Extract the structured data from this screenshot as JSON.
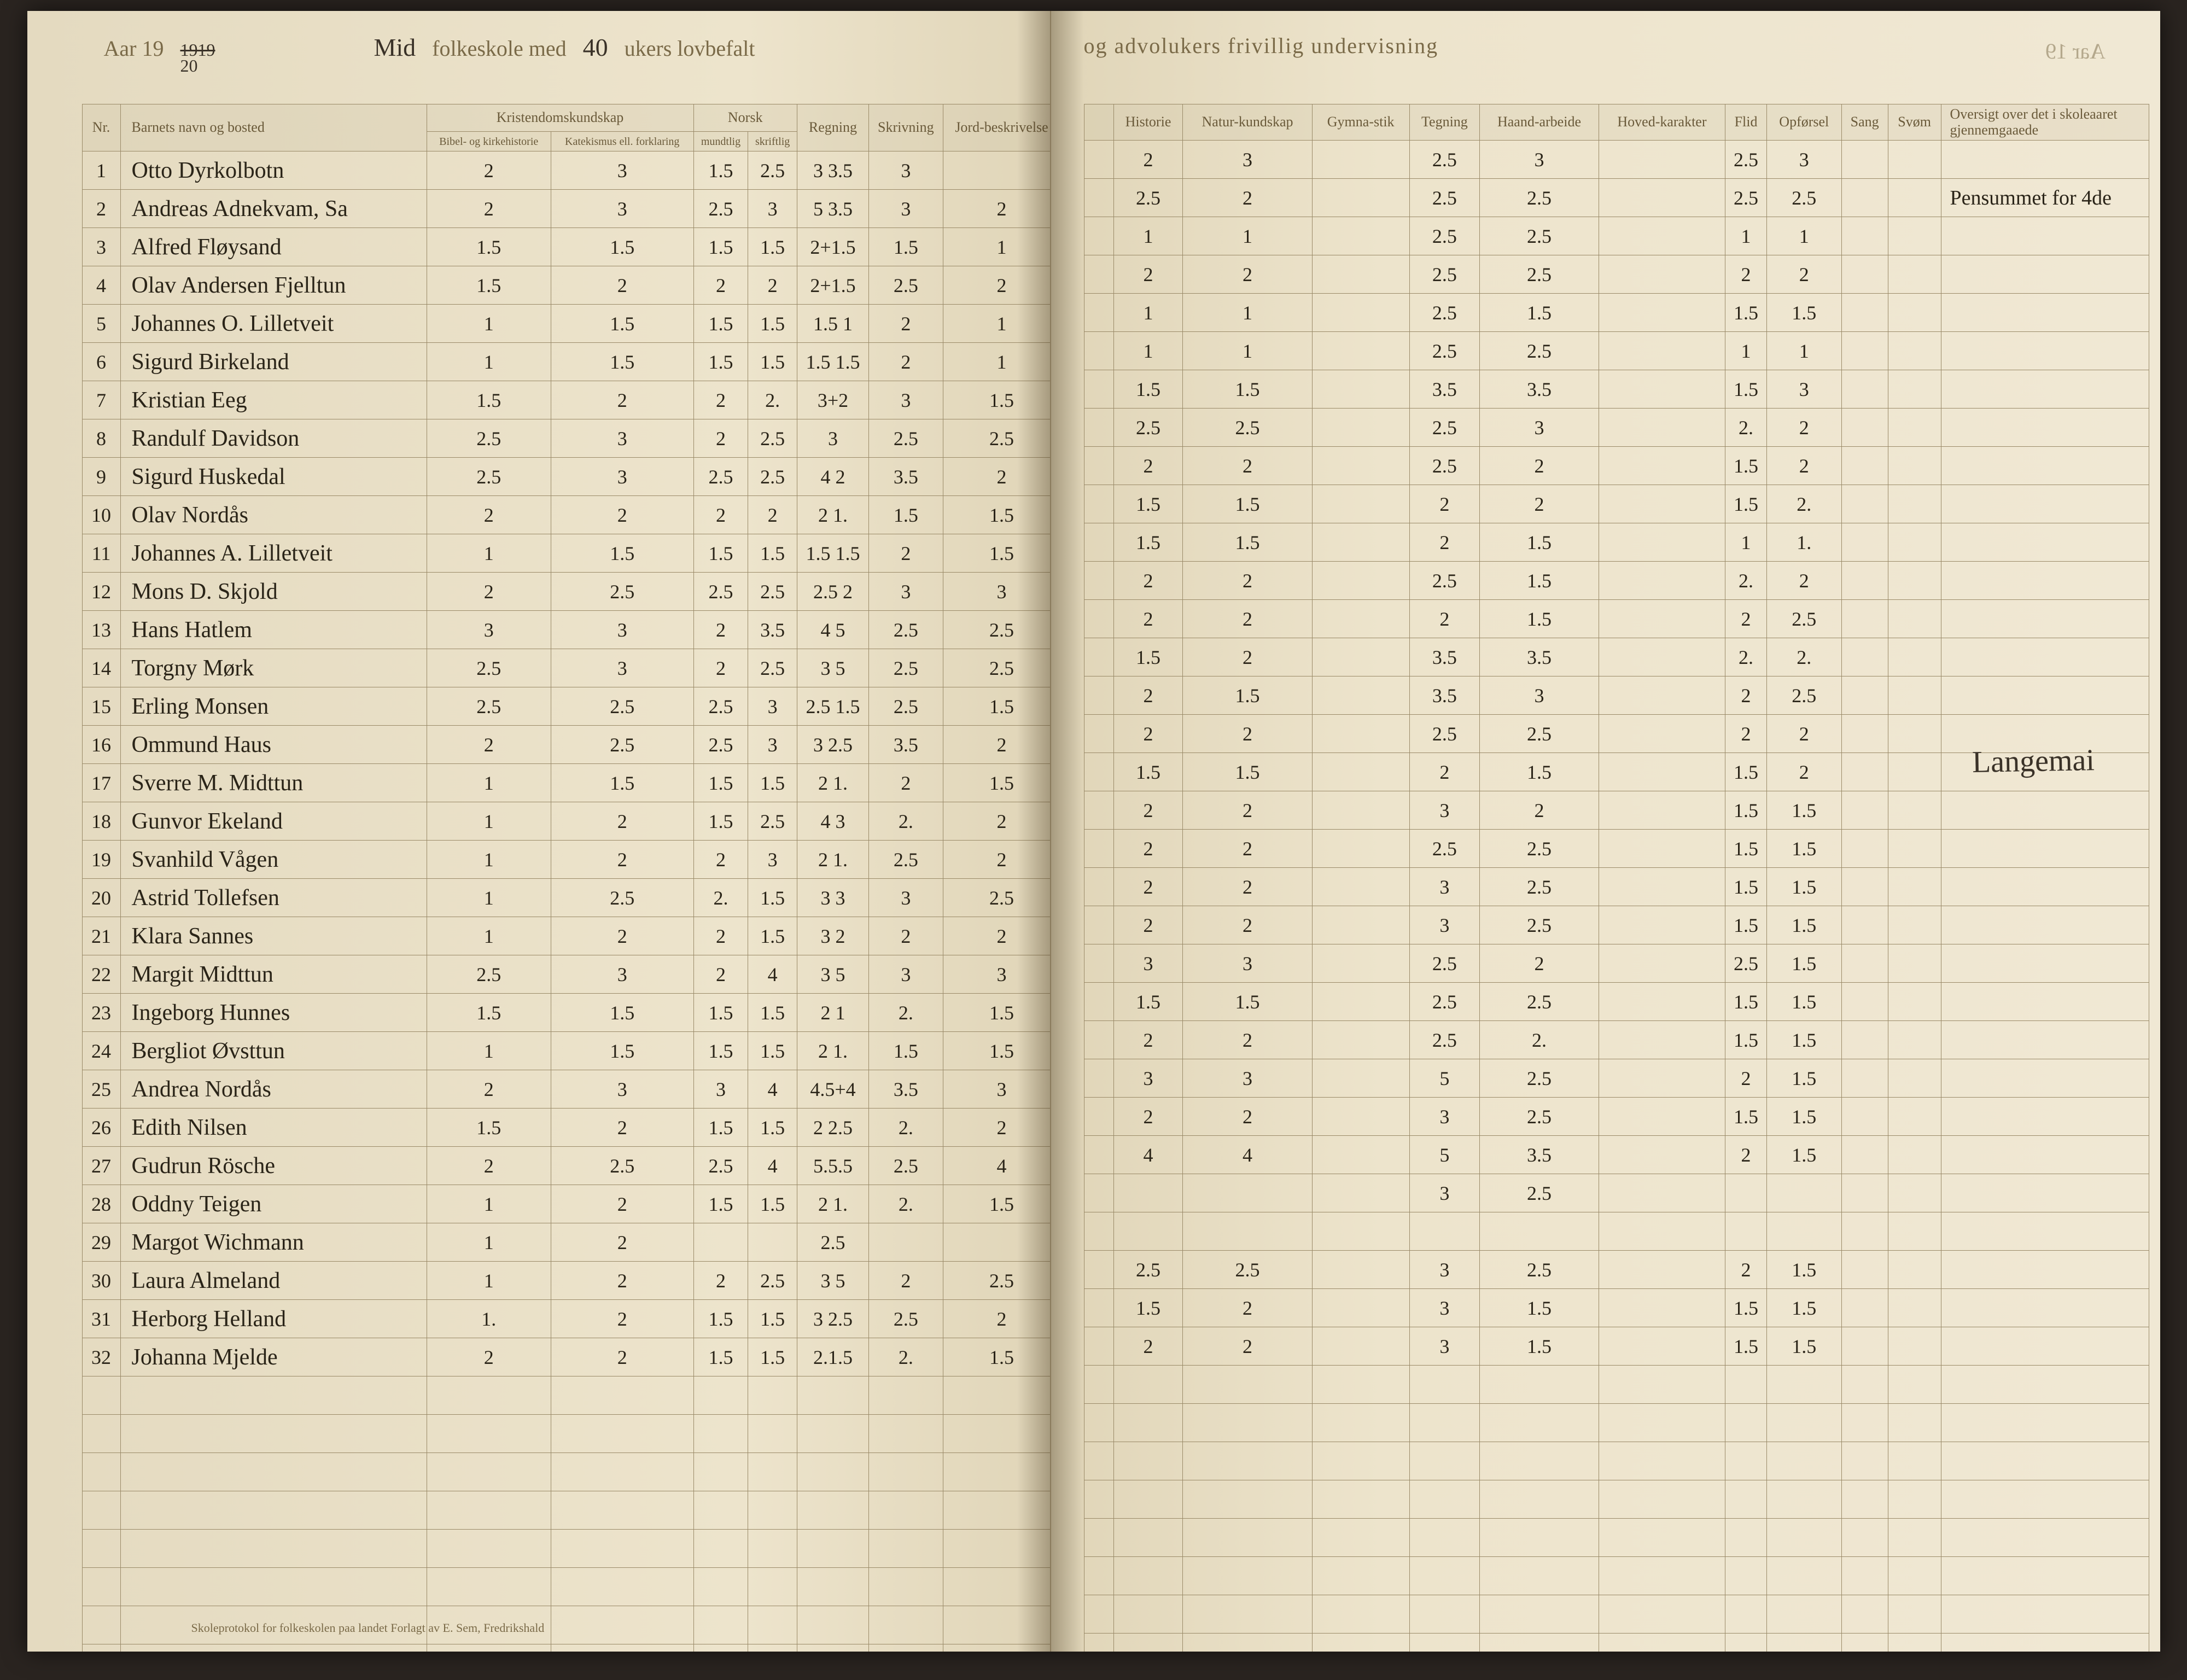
{
  "header": {
    "aar_label": "Aar 19",
    "year_over": "1919",
    "year_main": "20",
    "school_hand": "Mid",
    "folkeskole_1": "folkeskole med",
    "weeks_hand": "40",
    "folkeskole_2": "ukers lovbefalt",
    "right_print": "og advolukers frivillig undervisning",
    "right_far": "Aar 19"
  },
  "left_columns": {
    "nr": "Nr.",
    "name": "Barnets navn og bosted",
    "krist": "Kristendomskundskap",
    "krist_a": "Bibel- og kirkehistorie",
    "krist_b": "Katekismus ell. forklaring",
    "norsk": "Norsk",
    "norsk_a": "mundtlig",
    "norsk_b": "skriftlig",
    "regning": "Regning",
    "skrivning": "Skrivning",
    "jord": "Jord-beskrivelse"
  },
  "right_columns": {
    "historie": "Historie",
    "natur": "Natur-kundskap",
    "gym": "Gymna-stik",
    "tegning": "Tegning",
    "haand": "Haand-arbeide",
    "hoved": "Hoved-karakter",
    "flid": "Flid",
    "opforsel": "Opførsel",
    "sang": "Sang",
    "svom": "Svøm",
    "oversigt": "Oversigt over det i skoleaaret gjennemgaaede"
  },
  "students": [
    {
      "nr": "1",
      "name": "Otto Dyrkolbotn",
      "g": [
        "2",
        "3",
        "1.5",
        "2.5",
        "3 3.5",
        "3",
        "",
        "3",
        "",
        "2",
        "3",
        "",
        "2.5",
        "3",
        "",
        "2.5",
        "3",
        "",
        ""
      ]
    },
    {
      "nr": "2",
      "name": "Andreas Adnekvam, Sa",
      "g": [
        "2",
        "3",
        "2.5",
        "3",
        "5 3.5",
        "3",
        "2",
        "",
        "",
        "2.5",
        "2",
        "",
        "2.5",
        "2.5",
        "",
        "2.5",
        "2.5",
        "",
        "Pensummet for 4de"
      ]
    },
    {
      "nr": "3",
      "name": "Alfred Fløysand",
      "g": [
        "1.5",
        "1.5",
        "1.5",
        "1.5",
        "2+1.5",
        "1.5",
        "1",
        "",
        "",
        "1",
        "1",
        "",
        "2.5",
        "2.5",
        "",
        "1",
        "1",
        "",
        ""
      ]
    },
    {
      "nr": "4",
      "name": "Olav Andersen Fjelltun",
      "g": [
        "1.5",
        "2",
        "2",
        "2",
        "2+1.5",
        "2.5",
        "2",
        "",
        "",
        "2",
        "2",
        "",
        "2.5",
        "2.5",
        "",
        "2",
        "2",
        "",
        ""
      ]
    },
    {
      "nr": "5",
      "name": "Johannes O. Lilletveit",
      "g": [
        "1",
        "1.5",
        "1.5",
        "1.5",
        "1.5 1",
        "2",
        "1",
        "",
        "",
        "1",
        "1",
        "",
        "2.5",
        "1.5",
        "",
        "1.5",
        "1.5",
        "",
        ""
      ]
    },
    {
      "nr": "6",
      "name": "Sigurd Birkeland",
      "g": [
        "1",
        "1.5",
        "1.5",
        "1.5",
        "1.5 1.5",
        "2",
        "1",
        "",
        "",
        "1",
        "1",
        "",
        "2.5",
        "2.5",
        "",
        "1",
        "1",
        "",
        ""
      ]
    },
    {
      "nr": "7",
      "name": "Kristian Eeg",
      "g": [
        "1.5",
        "2",
        "2",
        "2.",
        "3+2",
        "3",
        "1.5",
        "",
        "",
        "1.5",
        "1.5",
        "",
        "3.5",
        "3.5",
        "",
        "1.5",
        "3",
        "",
        ""
      ]
    },
    {
      "nr": "8",
      "name": "Randulf Davidson",
      "g": [
        "2.5",
        "3",
        "2",
        "2.5",
        "3",
        "2.5",
        "2.5",
        "",
        "",
        "2.5",
        "2.5",
        "",
        "2.5",
        "3",
        "",
        "2.",
        "2",
        "",
        ""
      ]
    },
    {
      "nr": "9",
      "name": "Sigurd Huskedal",
      "g": [
        "2.5",
        "3",
        "2.5",
        "2.5",
        "4 2",
        "3.5",
        "2",
        "",
        "",
        "2",
        "2",
        "",
        "2.5",
        "2",
        "",
        "1.5",
        "2",
        "",
        ""
      ]
    },
    {
      "nr": "10",
      "name": "Olav Nordås",
      "g": [
        "2",
        "2",
        "2",
        "2",
        "2 1.",
        "1.5",
        "1.5",
        "",
        "",
        "1.5",
        "1.5",
        "",
        "2",
        "2",
        "",
        "1.5",
        "2.",
        "",
        ""
      ]
    },
    {
      "nr": "11",
      "name": "Johannes A. Lilletveit",
      "g": [
        "1",
        "1.5",
        "1.5",
        "1.5",
        "1.5 1.5",
        "2",
        "1.5",
        "",
        "",
        "1.5",
        "1.5",
        "",
        "2",
        "1.5",
        "",
        "1",
        "1.",
        "",
        ""
      ]
    },
    {
      "nr": "12",
      "name": "Mons D. Skjold",
      "g": [
        "2",
        "2.5",
        "2.5",
        "2.5",
        "2.5 2",
        "3",
        "3",
        "",
        "",
        "2",
        "2",
        "",
        "2.5",
        "1.5",
        "",
        "2.",
        "2",
        "",
        ""
      ]
    },
    {
      "nr": "13",
      "name": "Hans Hatlem",
      "g": [
        "3",
        "3",
        "2",
        "3.5",
        "4 5",
        "2.5",
        "2.5",
        "",
        "",
        "2",
        "2",
        "",
        "2",
        "1.5",
        "",
        "2",
        "2.5",
        "",
        ""
      ]
    },
    {
      "nr": "14",
      "name": "Torgny Mørk",
      "g": [
        "2.5",
        "3",
        "2",
        "2.5",
        "3 5",
        "2.5",
        "2.5",
        "",
        "",
        "1.5",
        "2",
        "",
        "3.5",
        "3.5",
        "",
        "2.",
        "2.",
        "",
        ""
      ]
    },
    {
      "nr": "15",
      "name": "Erling Monsen",
      "g": [
        "2.5",
        "2.5",
        "2.5",
        "3",
        "2.5 1.5",
        "2.5",
        "1.5",
        "",
        "",
        "2",
        "1.5",
        "",
        "3.5",
        "3",
        "",
        "2",
        "2.5",
        "",
        ""
      ]
    },
    {
      "nr": "16",
      "name": "Ommund Haus",
      "g": [
        "2",
        "2.5",
        "2.5",
        "3",
        "3 2.5",
        "3.5",
        "2",
        "",
        "",
        "2",
        "2",
        "",
        "2.5",
        "2.5",
        "",
        "2",
        "2",
        "",
        ""
      ]
    },
    {
      "nr": "17",
      "name": "Sverre M. Midttun",
      "g": [
        "1",
        "1.5",
        "1.5",
        "1.5",
        "2 1.",
        "2",
        "1.5",
        "",
        "",
        "1.5",
        "1.5",
        "",
        "2",
        "1.5",
        "",
        "1.5",
        "2",
        "",
        ""
      ]
    },
    {
      "nr": "18",
      "name": "Gunvor Ekeland",
      "g": [
        "1",
        "2",
        "1.5",
        "2.5",
        "4 3",
        "2.",
        "2",
        "",
        "",
        "2",
        "2",
        "",
        "3",
        "2",
        "",
        "1.5",
        "1.5",
        "",
        ""
      ]
    },
    {
      "nr": "19",
      "name": "Svanhild Vågen",
      "g": [
        "1",
        "2",
        "2",
        "3",
        "2 1.",
        "2.5",
        "2",
        "",
        "",
        "2",
        "2",
        "",
        "2.5",
        "2.5",
        "",
        "1.5",
        "1.5",
        "",
        ""
      ]
    },
    {
      "nr": "20",
      "name": "Astrid Tollefsen",
      "g": [
        "1",
        "2.5",
        "2.",
        "1.5",
        "3 3",
        "3",
        "2.5",
        "",
        "",
        "2",
        "2",
        "",
        "3",
        "2.5",
        "",
        "1.5",
        "1.5",
        "",
        ""
      ]
    },
    {
      "nr": "21",
      "name": "Klara Sannes",
      "g": [
        "1",
        "2",
        "2",
        "1.5",
        "3 2",
        "2",
        "2",
        "",
        "",
        "2",
        "2",
        "",
        "3",
        "2.5",
        "",
        "1.5",
        "1.5",
        "",
        ""
      ]
    },
    {
      "nr": "22",
      "name": "Margit Midttun",
      "g": [
        "2.5",
        "3",
        "2",
        "4",
        "3 5",
        "3",
        "3",
        "",
        "",
        "3",
        "3",
        "",
        "2.5",
        "2",
        "",
        "2.5",
        "1.5",
        "",
        ""
      ]
    },
    {
      "nr": "23",
      "name": "Ingeborg Hunnes",
      "g": [
        "1.5",
        "1.5",
        "1.5",
        "1.5",
        "2 1",
        "2.",
        "1.5",
        "",
        "",
        "1.5",
        "1.5",
        "",
        "2.5",
        "2.5",
        "",
        "1.5",
        "1.5",
        "",
        ""
      ]
    },
    {
      "nr": "24",
      "name": "Bergliot Øvsttun",
      "g": [
        "1",
        "1.5",
        "1.5",
        "1.5",
        "2 1.",
        "1.5",
        "1.5",
        "",
        "",
        "2",
        "2",
        "",
        "2.5",
        "2.",
        "",
        "1.5",
        "1.5",
        "",
        ""
      ]
    },
    {
      "nr": "25",
      "name": "Andrea Nordås",
      "g": [
        "2",
        "3",
        "3",
        "4",
        "4.5+4",
        "3.5",
        "3",
        "",
        "",
        "3",
        "3",
        "",
        "5",
        "2.5",
        "",
        "2",
        "1.5",
        "",
        ""
      ]
    },
    {
      "nr": "26",
      "name": "Edith Nilsen",
      "g": [
        "1.5",
        "2",
        "1.5",
        "1.5",
        "2 2.5",
        "2.",
        "2",
        "",
        "",
        "2",
        "2",
        "",
        "3",
        "2.5",
        "",
        "1.5",
        "1.5",
        "",
        ""
      ]
    },
    {
      "nr": "27",
      "name": "Gudrun Rösche",
      "g": [
        "2",
        "2.5",
        "2.5",
        "4",
        "5.5.5",
        "2.5",
        "4",
        "",
        "",
        "4",
        "4",
        "",
        "5",
        "3.5",
        "",
        "2",
        "1.5",
        "",
        ""
      ]
    },
    {
      "nr": "28",
      "name": "Oddny Teigen",
      "g": [
        "1",
        "2",
        "1.5",
        "1.5",
        "2 1.",
        "2.",
        "1.5",
        "",
        "",
        "",
        "",
        "",
        "3",
        "2.5",
        "",
        "",
        "",
        "",
        ""
      ]
    },
    {
      "nr": "29",
      "name": "Margot Wichmann",
      "g": [
        "1",
        "2",
        "",
        "",
        "2.5",
        "",
        "",
        "",
        "",
        "",
        "",
        "",
        "",
        "",
        "",
        "",
        "",
        "",
        ""
      ]
    },
    {
      "nr": "30",
      "name": "Laura Almeland",
      "g": [
        "1",
        "2",
        "2",
        "2.5",
        "3 5",
        "2",
        "2.5",
        "",
        "",
        "2.5",
        "2.5",
        "",
        "3",
        "2.5",
        "",
        "2",
        "1.5",
        "",
        ""
      ]
    },
    {
      "nr": "31",
      "name": "Herborg Helland",
      "g": [
        "1.",
        "2",
        "1.5",
        "1.5",
        "3 2.5",
        "2.5",
        "2",
        "",
        "",
        "1.5",
        "2",
        "",
        "3",
        "1.5",
        "",
        "1.5",
        "1.5",
        "",
        ""
      ]
    },
    {
      "nr": "32",
      "name": "Johanna Mjelde",
      "g": [
        "2",
        "2",
        "1.5",
        "1.5",
        "2.1.5",
        "2.",
        "1.5",
        "",
        "",
        "2",
        "2",
        "",
        "3",
        "1.5",
        "",
        "1.5",
        "1.5",
        "",
        ""
      ]
    }
  ],
  "blank_rows": 8,
  "side_signature": "Langemai",
  "footer": "Skoleprotokol for folkeskolen paa landet\nForlagt av E. Sem, Fredrikshald"
}
